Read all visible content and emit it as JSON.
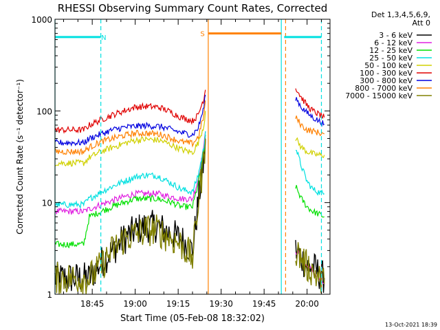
{
  "chart_data": {
    "type": "line",
    "title": "RHESSI Observing Summary Count Rates, Corrected",
    "xlabel": "Start Time (05-Feb-08 18:32:02)",
    "ylabel": "Corrected Count Rate (s⁻¹ detector⁻¹)",
    "yscale": "log",
    "ylim": [
      1,
      1000
    ],
    "xlim_minutes": [
      0,
      96
    ],
    "x_ticks": [
      {
        "label": "18:45",
        "minutes": 13
      },
      {
        "label": "19:00",
        "minutes": 28
      },
      {
        "label": "19:15",
        "minutes": 43
      },
      {
        "label": "19:30",
        "minutes": 58
      },
      {
        "label": "19:45",
        "minutes": 73
      },
      {
        "label": "20:00",
        "minutes": 88
      }
    ],
    "y_ticks": [
      {
        "label": "1",
        "value": 1
      },
      {
        "label": "10",
        "value": 10
      },
      {
        "label": "100",
        "value": 100
      },
      {
        "label": "1000",
        "value": 1000
      }
    ],
    "legend_header": [
      "Det 1,3,4,5,6,9,",
      "Att 0"
    ],
    "series": [
      {
        "name": "3 - 6 keV",
        "color": "#000000",
        "x": [
          0,
          10,
          12,
          16,
          20,
          24,
          28,
          32,
          36,
          38,
          41,
          44,
          48,
          50,
          52,
          52.5,
          82,
          84,
          86,
          88,
          90,
          92,
          94
        ],
        "y": [
          1.5,
          1.5,
          1.5,
          2.2,
          3.0,
          4.0,
          5.0,
          5.5,
          5.5,
          5.0,
          4.5,
          4.0,
          3.0,
          10,
          30,
          50,
          null,
          3.0,
          2.5,
          2.0,
          2.0,
          1.7,
          1.5
        ]
      },
      {
        "name": "6 - 12 keV",
        "color": "#e020e0",
        "x": [
          0,
          10,
          12,
          16,
          20,
          24,
          28,
          32,
          36,
          38,
          41,
          44,
          48,
          50,
          52,
          52.5,
          82,
          84,
          86,
          88,
          90,
          92,
          94
        ],
        "y": [
          8,
          8,
          8.5,
          9.5,
          10.5,
          11.5,
          12.5,
          12.5,
          12.5,
          12,
          11.5,
          11,
          11,
          18,
          40,
          60,
          null,
          3.0,
          2.5,
          2.0,
          1.8,
          1.5,
          1.3
        ]
      },
      {
        "name": "12 - 25 keV",
        "color": "#00e000",
        "x": [
          0,
          10,
          12,
          16,
          20,
          24,
          28,
          32,
          36,
          38,
          41,
          44,
          48,
          50,
          52,
          52.5,
          82,
          84,
          86,
          88,
          90,
          92,
          94
        ],
        "y": [
          3.5,
          3.5,
          7,
          8,
          9,
          10,
          11,
          11,
          11,
          10.5,
          10,
          9,
          9,
          16,
          35,
          55,
          null,
          15,
          11,
          9,
          8,
          7.5,
          7
        ]
      },
      {
        "name": "25 - 50 keV",
        "color": "#00e0e0",
        "x": [
          0,
          10,
          12,
          16,
          20,
          24,
          28,
          32,
          36,
          38,
          41,
          44,
          48,
          50,
          52,
          52.5,
          82,
          84,
          86,
          88,
          90,
          92,
          94
        ],
        "y": [
          9.5,
          9.5,
          11,
          13,
          15,
          17,
          19,
          20,
          19.5,
          18,
          16,
          14,
          13,
          20,
          40,
          60,
          null,
          40,
          25,
          17,
          14,
          13,
          12.5
        ]
      },
      {
        "name": "50 - 100 keV",
        "color": "#d0d000",
        "x": [
          0,
          10,
          12,
          16,
          20,
          24,
          28,
          32,
          36,
          38,
          41,
          44,
          48,
          50,
          52,
          52.5,
          82,
          84,
          86,
          88,
          90,
          92,
          94
        ],
        "y": [
          27,
          27,
          31,
          36,
          40,
          44,
          48,
          49,
          48,
          46,
          42,
          38,
          35,
          45,
          70,
          100,
          null,
          50,
          40,
          36,
          34,
          33,
          33
        ]
      },
      {
        "name": "100 - 300 keV",
        "color": "#e00000",
        "x": [
          0,
          10,
          12,
          16,
          20,
          24,
          28,
          32,
          36,
          38,
          41,
          44,
          48,
          50,
          52,
          52.5,
          82,
          84,
          86,
          88,
          90,
          92,
          94
        ],
        "y": [
          62,
          62,
          70,
          80,
          90,
          100,
          110,
          112,
          110,
          105,
          95,
          85,
          78,
          90,
          140,
          170,
          null,
          180,
          140,
          115,
          100,
          92,
          85
        ]
      },
      {
        "name": "300 - 800 keV",
        "color": "#0000e0",
        "x": [
          0,
          10,
          12,
          16,
          20,
          24,
          28,
          32,
          36,
          38,
          41,
          44,
          48,
          50,
          52,
          52.5,
          82,
          84,
          86,
          88,
          90,
          92,
          94
        ],
        "y": [
          45,
          45,
          50,
          56,
          62,
          66,
          68,
          69,
          68,
          66,
          62,
          58,
          55,
          65,
          110,
          150,
          null,
          140,
          110,
          95,
          85,
          78,
          72
        ]
      },
      {
        "name": "800 - 7000 keV",
        "color": "#ff8000",
        "x": [
          0,
          10,
          12,
          16,
          20,
          24,
          28,
          32,
          36,
          38,
          41,
          44,
          48,
          50,
          52,
          52.5,
          82,
          84,
          86,
          88,
          90,
          92,
          94
        ],
        "y": [
          36,
          36,
          40,
          46,
          50,
          54,
          57,
          57,
          56,
          54,
          50,
          46,
          44,
          52,
          90,
          130,
          null,
          85,
          70,
          62,
          60,
          58,
          56
        ]
      },
      {
        "name": "7000 - 15000 keV",
        "color": "#808000",
        "x": [
          0,
          10,
          12,
          16,
          20,
          24,
          28,
          32,
          36,
          38,
          41,
          44,
          48,
          50,
          52,
          52.5,
          82,
          84,
          86,
          88,
          90,
          92,
          94
        ],
        "y": [
          1.5,
          1.5,
          1.5,
          2.0,
          3.0,
          4.0,
          4.5,
          5.0,
          5.0,
          4.5,
          4.0,
          3.5,
          2.5,
          10,
          30,
          50,
          null,
          3.0,
          2.5,
          2.0,
          1.8,
          1.5,
          1.3
        ]
      }
    ],
    "flag_bars": [
      {
        "label": "N",
        "color": "#00e0e0",
        "y_value": 640,
        "segments": [
          [
            0,
            16
          ],
          [
            80,
            93
          ]
        ],
        "label_at": 17
      },
      {
        "label": "S",
        "color": "#ff8000",
        "y_value": 700,
        "segments": [
          [
            53.5,
            79
          ]
        ],
        "label_at": 51.5
      }
    ],
    "vertical_lines": [
      {
        "minutes": 0,
        "color": "#00e0e0",
        "style": "solid"
      },
      {
        "minutes": 16,
        "color": "#00e0e0",
        "style": "dashed"
      },
      {
        "minutes": 53.5,
        "color": "#ff8000",
        "style": "solid"
      },
      {
        "minutes": 79,
        "color": "#00e0e0",
        "style": "solid"
      },
      {
        "minutes": 80.5,
        "color": "#ff8000",
        "style": "dashed"
      },
      {
        "minutes": 93,
        "color": "#00e0e0",
        "style": "dashed"
      }
    ]
  },
  "footer_timestamp": "13-Oct-2021 18:39"
}
